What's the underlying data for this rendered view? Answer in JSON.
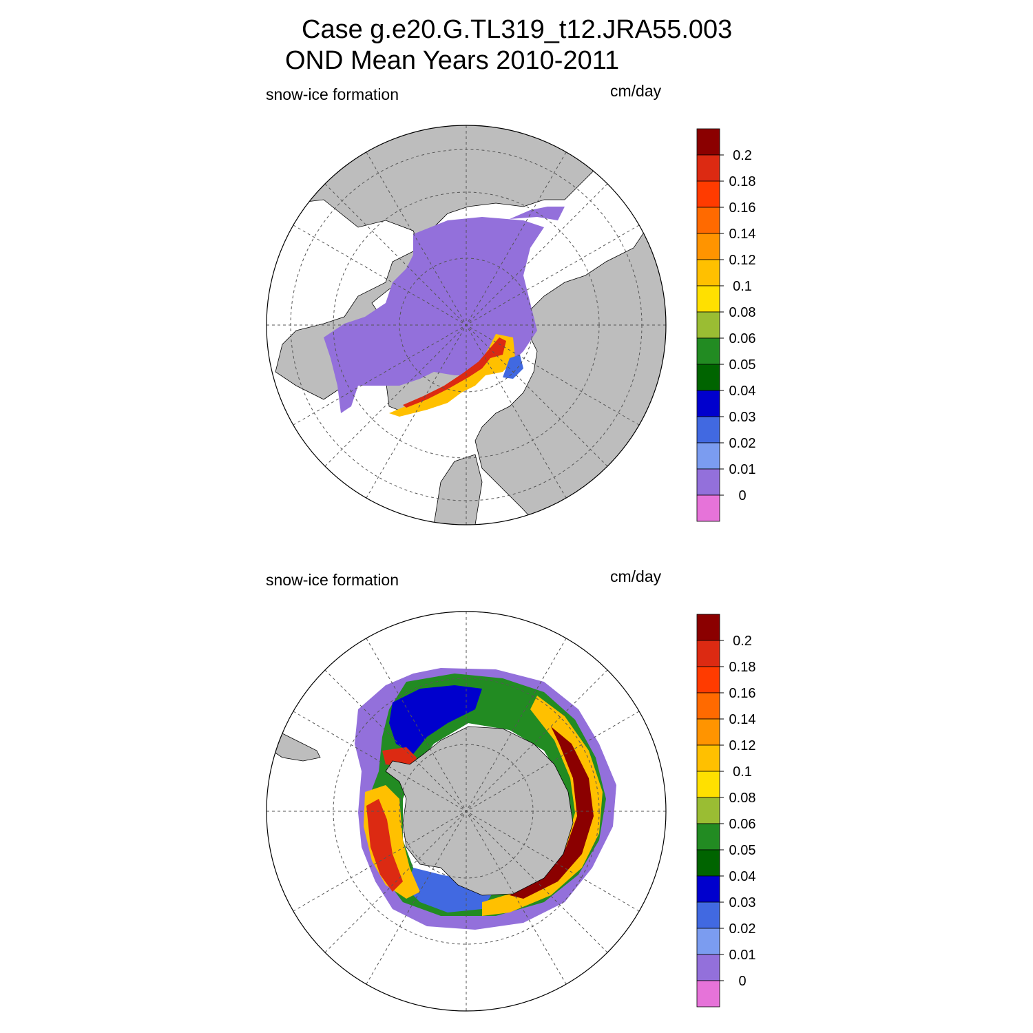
{
  "title": {
    "line1": "Case g.e20.G.TL319_t12.JRA55.003",
    "line2": "OND Mean   Years 2010-2011"
  },
  "panels": [
    {
      "id": "north",
      "variable": "snow-ice formation",
      "units": "cm/day"
    },
    {
      "id": "south",
      "variable": "snow-ice formation",
      "units": "cm/day"
    }
  ],
  "colorbar": {
    "levels": [
      "0.2",
      "0.18",
      "0.16",
      "0.14",
      "0.12",
      "0.1",
      "0.08",
      "0.06",
      "0.05",
      "0.04",
      "0.03",
      "0.02",
      "0.01",
      "0"
    ],
    "colors": [
      "#8b0000",
      "#dc2a12",
      "#ff3b00",
      "#ff6a00",
      "#ff9400",
      "#ffc000",
      "#ffe000",
      "#9abd33",
      "#228b22",
      "#006400",
      "#0000cd",
      "#4169e1",
      "#7b9cf0",
      "#9370db",
      "#e673d9"
    ]
  },
  "map_colors": {
    "land": "#bdbdbd",
    "ocean": "#ffffff",
    "grid": "#555555"
  }
}
